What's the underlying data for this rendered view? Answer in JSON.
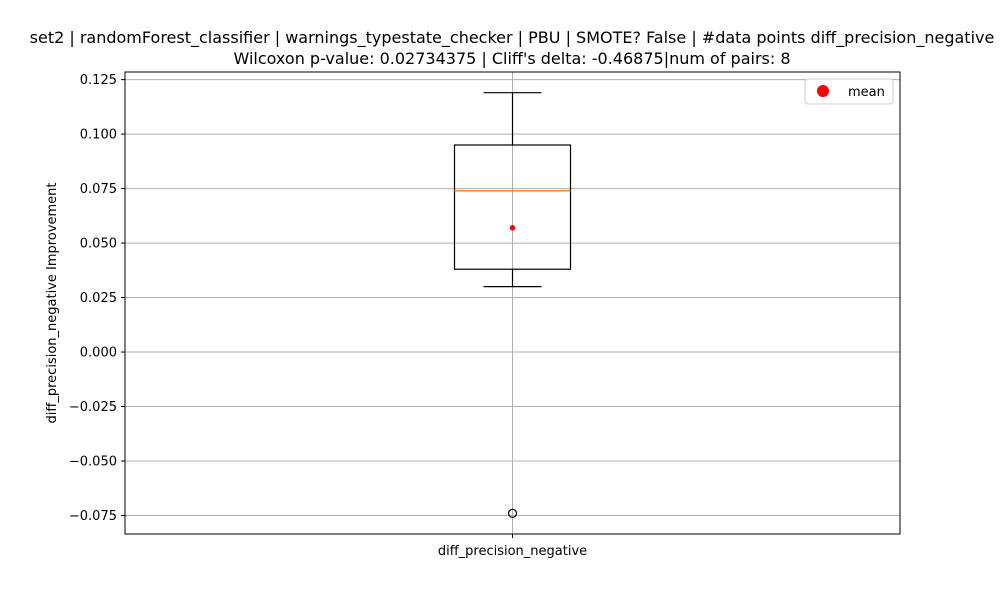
{
  "chart_data": {
    "type": "box",
    "title_line1": "set2 | randomForest_classifier | warnings_typestate_checker | PBU | SMOTE? False | #data points diff_precision_negative",
    "title_line2": "Wilcoxon p-value: 0.02734375 | Cliff's delta: -0.46875|num of pairs: 8",
    "xlabel": "diff_precision_negative",
    "ylabel": "diff_precision_negative Improvement",
    "ylim": [
      -0.0835,
      0.1285
    ],
    "yticks": [
      -0.075,
      -0.05,
      -0.025,
      0.0,
      0.025,
      0.05,
      0.075,
      0.1,
      0.125
    ],
    "ytick_labels": [
      "−0.075",
      "−0.050",
      "−0.025",
      "0.000",
      "0.025",
      "0.050",
      "0.075",
      "0.100",
      "0.125"
    ],
    "grid": true,
    "legend": {
      "placement": "top-right",
      "entries": [
        {
          "label": "mean",
          "color": "#ff0000"
        }
      ]
    },
    "box": {
      "category": "diff_precision_negative",
      "whisker_low": 0.03,
      "q1": 0.038,
      "median": 0.074,
      "q3": 0.095,
      "whisker_high": 0.119,
      "mean": 0.057,
      "outliers": [
        -0.074
      ]
    },
    "colors": {
      "median": "#ff7f0e",
      "mean": "#ff0000",
      "grid": "#b0b0b0",
      "box": "#000000"
    }
  }
}
